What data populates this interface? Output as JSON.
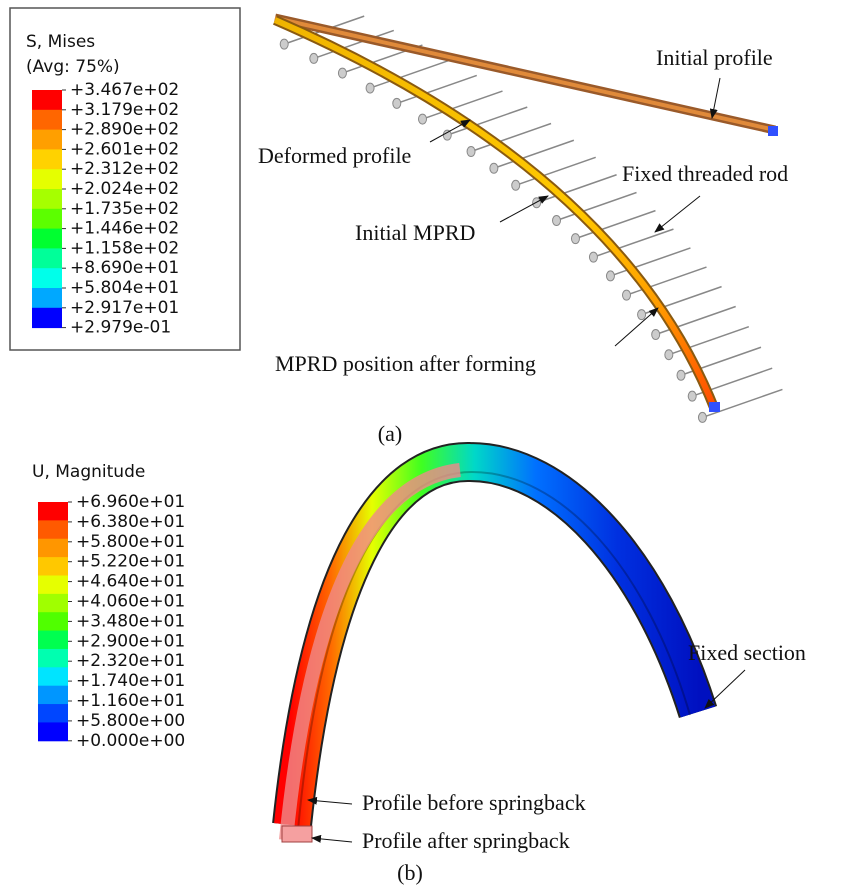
{
  "panel_a": {
    "legend": {
      "title": "S, Mises",
      "subtitle": "(Avg: 75%)",
      "labels": [
        "+3.467e+02",
        "+3.179e+02",
        "+2.890e+02",
        "+2.601e+02",
        "+2.312e+02",
        "+2.024e+02",
        "+1.735e+02",
        "+1.446e+02",
        "+1.158e+02",
        "+8.690e+01",
        "+5.804e+01",
        "+2.917e+01",
        "+2.979e-01"
      ],
      "colors": [
        "#ff0000",
        "#ff6600",
        "#ff9f00",
        "#ffd200",
        "#e5ff00",
        "#a6ff00",
        "#5cff00",
        "#00ff30",
        "#00ff99",
        "#00ffea",
        "#00a8ff",
        "#0000ff"
      ]
    },
    "annotations": [
      "Initial profile",
      "Deformed profile",
      "Fixed threaded rod",
      "Initial MPRD",
      "MPRD position after forming"
    ],
    "caption": "(a)"
  },
  "panel_b": {
    "legend": {
      "title": "U, Magnitude",
      "labels": [
        "+6.960e+01",
        "+6.380e+01",
        "+5.800e+01",
        "+5.220e+01",
        "+4.640e+01",
        "+4.060e+01",
        "+3.480e+01",
        "+2.900e+01",
        "+2.320e+01",
        "+1.740e+01",
        "+1.160e+01",
        "+5.800e+00",
        "+0.000e+00"
      ],
      "colors": [
        "#ff0000",
        "#ff5a00",
        "#ff9600",
        "#ffc800",
        "#e6ff00",
        "#a0ff00",
        "#50ff00",
        "#00ff50",
        "#00ffb0",
        "#00e4ff",
        "#0096ff",
        "#0046ff",
        "#0000ff"
      ]
    },
    "annotations": [
      "Fixed section",
      "Profile before springback",
      "Profile after springback"
    ],
    "caption": "(b)"
  }
}
